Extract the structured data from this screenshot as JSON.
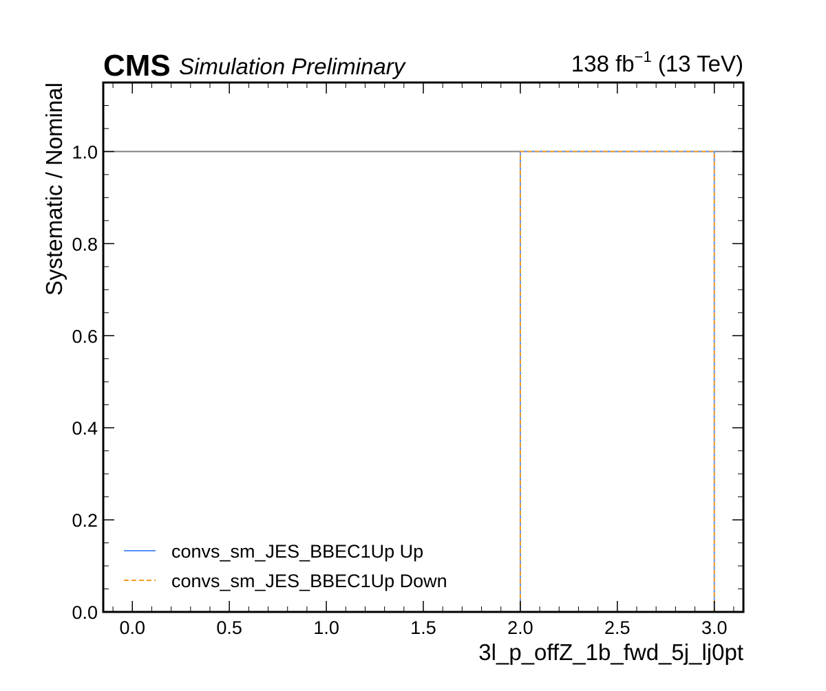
{
  "header": {
    "experiment": "CMS",
    "status": "Simulation Preliminary",
    "lumi_value": "138 fb",
    "lumi_exp": "−1",
    "energy": " (13 TeV)"
  },
  "chart_data": {
    "type": "line",
    "xlabel": "3l_p_offZ_1b_fwd_5j_lj0pt",
    "ylabel": "Systematic / Nominal",
    "xlim": [
      -0.15,
      3.15
    ],
    "ylim": [
      0.0,
      1.15
    ],
    "xticks": [
      "0.0",
      "0.5",
      "1.0",
      "1.5",
      "2.0",
      "2.5",
      "3.0"
    ],
    "yticks": [
      "0.0",
      "0.2",
      "0.4",
      "0.6",
      "0.8",
      "1.0"
    ],
    "reference_line": {
      "y": 1.0,
      "color": "#808080"
    },
    "bin_edges": [
      0,
      1,
      2,
      3
    ],
    "series": [
      {
        "name": "convs_sm_JES_BBEC1Up Up",
        "values": [
          0,
          0,
          1.0
        ],
        "color": "#5790fc",
        "style": "solid"
      },
      {
        "name": "convs_sm_JES_BBEC1Up Down",
        "values": [
          0,
          0,
          1.0
        ],
        "color": "#f89c20",
        "style": "dashed"
      }
    ],
    "legend_position": "lower-left"
  }
}
